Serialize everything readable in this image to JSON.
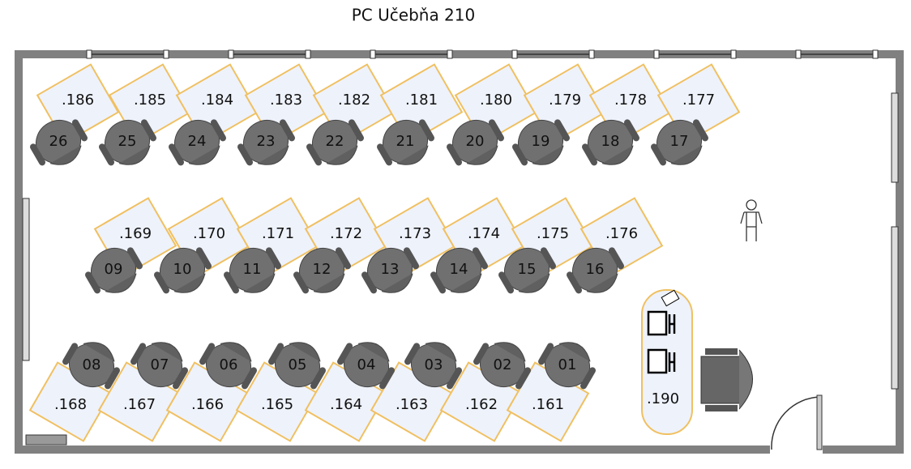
{
  "title": "PC Učebňa 210",
  "rows": [
    {
      "desks": [
        {
          "ip": ".186",
          "seat": "26"
        },
        {
          "ip": ".185",
          "seat": "25"
        },
        {
          "ip": ".184",
          "seat": "24"
        },
        {
          "ip": ".183",
          "seat": "23"
        },
        {
          "ip": ".182",
          "seat": "22"
        },
        {
          "ip": ".181",
          "seat": "21"
        },
        {
          "ip": ".180",
          "seat": "20"
        },
        {
          "ip": ".179",
          "seat": "19"
        },
        {
          "ip": ".178",
          "seat": "18"
        },
        {
          "ip": ".177",
          "seat": "17"
        }
      ]
    },
    {
      "desks": [
        {
          "ip": ".169",
          "seat": "09"
        },
        {
          "ip": ".170",
          "seat": "10"
        },
        {
          "ip": ".171",
          "seat": "11"
        },
        {
          "ip": ".172",
          "seat": "12"
        },
        {
          "ip": ".173",
          "seat": "13"
        },
        {
          "ip": ".174",
          "seat": "14"
        },
        {
          "ip": ".175",
          "seat": "15"
        },
        {
          "ip": ".176",
          "seat": "16"
        }
      ]
    },
    {
      "desks": [
        {
          "ip": ".168",
          "seat": "08"
        },
        {
          "ip": ".167",
          "seat": "07"
        },
        {
          "ip": ".166",
          "seat": "06"
        },
        {
          "ip": ".165",
          "seat": "05"
        },
        {
          "ip": ".164",
          "seat": "04"
        },
        {
          "ip": ".163",
          "seat": "03"
        },
        {
          "ip": ".162",
          "seat": "02"
        },
        {
          "ip": ".161",
          "seat": "01"
        }
      ]
    }
  ],
  "teacher": {
    "ip": ".190"
  }
}
